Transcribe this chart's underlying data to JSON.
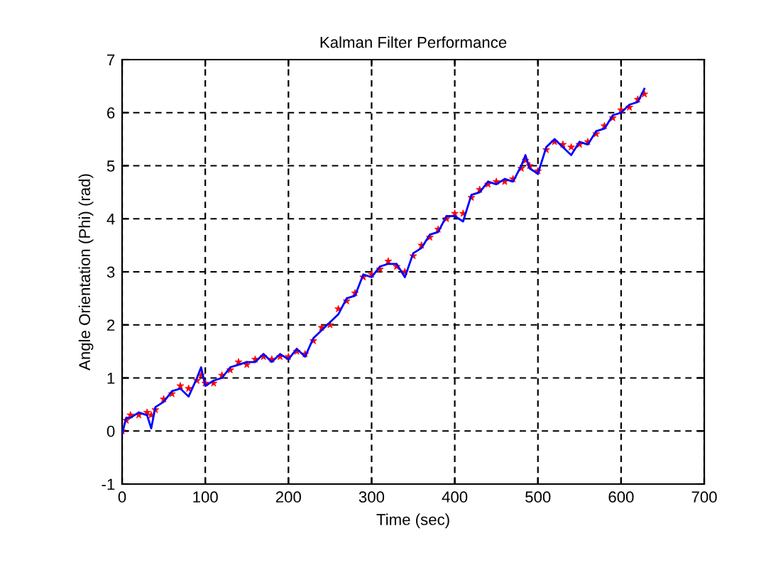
{
  "chart_data": {
    "type": "line",
    "title": "Kalman Filter Performance",
    "xlabel": "Time (sec)",
    "ylabel": "Angle Orientation (Phi) (rad)",
    "xlim": [
      0,
      700
    ],
    "ylim": [
      -1,
      7
    ],
    "xticks": [
      0,
      100,
      200,
      300,
      400,
      500,
      600,
      700
    ],
    "yticks": [
      -1,
      0,
      1,
      2,
      3,
      4,
      5,
      6,
      7
    ],
    "grid": true,
    "series": [
      {
        "type": "scatter",
        "marker": "star",
        "color": "#ff0000",
        "x": [
          0,
          5,
          10,
          20,
          30,
          35,
          40,
          50,
          60,
          70,
          80,
          90,
          95,
          100,
          110,
          120,
          130,
          140,
          150,
          160,
          170,
          180,
          190,
          200,
          210,
          220,
          230,
          240,
          250,
          260,
          270,
          280,
          290,
          300,
          310,
          320,
          330,
          340,
          350,
          360,
          370,
          380,
          390,
          400,
          410,
          420,
          430,
          440,
          450,
          460,
          470,
          480,
          485,
          490,
          500,
          510,
          520,
          530,
          540,
          550,
          560,
          570,
          580,
          590,
          600,
          610,
          620,
          628
        ],
        "values": [
          0.0,
          0.2,
          0.3,
          0.3,
          0.35,
          0.3,
          0.4,
          0.6,
          0.7,
          0.85,
          0.8,
          0.95,
          1.05,
          0.9,
          0.9,
          1.05,
          1.15,
          1.3,
          1.25,
          1.35,
          1.4,
          1.35,
          1.4,
          1.4,
          1.5,
          1.45,
          1.7,
          1.95,
          2.0,
          2.3,
          2.45,
          2.6,
          2.9,
          2.95,
          3.05,
          3.2,
          3.1,
          3.0,
          3.3,
          3.5,
          3.65,
          3.8,
          4.0,
          4.1,
          4.1,
          4.4,
          4.55,
          4.65,
          4.7,
          4.7,
          4.75,
          4.95,
          5.1,
          5.0,
          4.9,
          5.3,
          5.45,
          5.4,
          5.35,
          5.4,
          5.45,
          5.6,
          5.75,
          5.9,
          6.05,
          6.1,
          6.25,
          6.35
        ]
      },
      {
        "marker": "none",
        "color": "#0000ff",
        "x": [
          0,
          5,
          10,
          20,
          30,
          35,
          40,
          50,
          60,
          70,
          80,
          90,
          95,
          100,
          110,
          120,
          130,
          140,
          150,
          160,
          170,
          180,
          190,
          200,
          210,
          220,
          230,
          240,
          250,
          260,
          270,
          280,
          290,
          300,
          310,
          320,
          330,
          340,
          350,
          360,
          370,
          380,
          390,
          400,
          410,
          420,
          430,
          440,
          450,
          460,
          470,
          480,
          485,
          490,
          500,
          510,
          520,
          530,
          540,
          550,
          560,
          570,
          580,
          590,
          600,
          610,
          620,
          628
        ],
        "values": [
          -0.05,
          0.25,
          0.25,
          0.35,
          0.3,
          0.05,
          0.45,
          0.55,
          0.75,
          0.8,
          0.65,
          1.0,
          1.2,
          0.85,
          0.95,
          1.0,
          1.2,
          1.25,
          1.3,
          1.3,
          1.45,
          1.3,
          1.45,
          1.35,
          1.55,
          1.4,
          1.75,
          1.9,
          2.05,
          2.2,
          2.5,
          2.55,
          2.95,
          2.9,
          3.1,
          3.15,
          3.15,
          2.9,
          3.35,
          3.45,
          3.7,
          3.75,
          4.05,
          4.05,
          3.95,
          4.45,
          4.5,
          4.7,
          4.65,
          4.75,
          4.7,
          5.0,
          5.2,
          4.95,
          4.85,
          5.35,
          5.5,
          5.35,
          5.2,
          5.45,
          5.4,
          5.65,
          5.7,
          5.95,
          6.0,
          6.15,
          6.2,
          6.45
        ]
      }
    ]
  }
}
